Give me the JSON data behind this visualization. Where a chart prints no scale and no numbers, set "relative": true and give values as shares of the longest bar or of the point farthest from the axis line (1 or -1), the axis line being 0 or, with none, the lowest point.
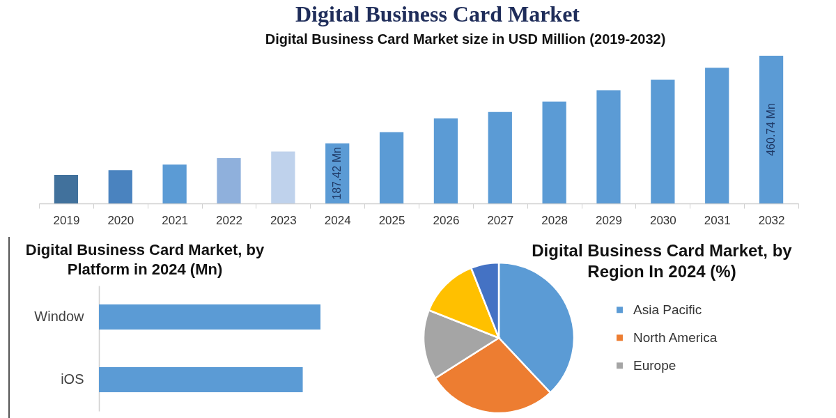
{
  "chart_data": [
    {
      "type": "bar",
      "title": "Digital Business Card Market",
      "subtitle": "Digital Business Card Market size in USD Million (2019-2032)",
      "categories": [
        "2019",
        "2020",
        "2021",
        "2022",
        "2023",
        "2024",
        "2025",
        "2026",
        "2027",
        "2028",
        "2029",
        "2030",
        "2031",
        "2032"
      ],
      "values": [
        89,
        104,
        121,
        141,
        162,
        187.42,
        222,
        265,
        285,
        318,
        353,
        386,
        423,
        460.74
      ],
      "colors": [
        "#41719c",
        "#4a83bf",
        "#5b9bd5",
        "#8fb0dc",
        "#bfd2ec",
        "#5b9bd5",
        "#5b9bd5",
        "#5b9bd5",
        "#5b9bd5",
        "#5b9bd5",
        "#5b9bd5",
        "#5b9bd5",
        "#5b9bd5",
        "#5b9bd5"
      ],
      "value_labels": [
        null,
        null,
        null,
        null,
        null,
        "187.42 Mn",
        null,
        null,
        null,
        null,
        null,
        null,
        null,
        "460.74 Mn"
      ],
      "tick_labels": "x"
    },
    {
      "type": "bar",
      "orientation": "horizontal",
      "title": "Digital Business Card Market, by Platform in 2024 (Mn)",
      "categories": [
        "Window",
        "iOS"
      ],
      "values": [
        1,
        0.92
      ],
      "color": "#5b9bd5",
      "relative": true
    },
    {
      "type": "pie",
      "title": "Digital Business Card Market, by Region In 2024 (%)",
      "categories": [
        "Asia Pacific",
        "North America",
        "Europe",
        null,
        null
      ],
      "values": [
        38,
        28,
        15,
        13,
        6
      ],
      "colors": [
        "#5b9bd5",
        "#ed7d31",
        "#a5a5a5",
        "#ffc000",
        "#4472c4"
      ],
      "legend": "right"
    }
  ]
}
